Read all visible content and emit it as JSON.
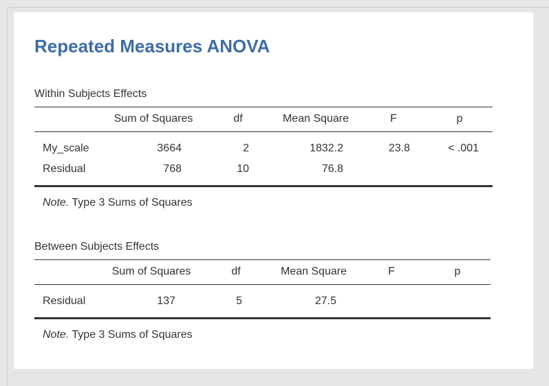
{
  "title": "Repeated Measures ANOVA",
  "within": {
    "caption": "Within Subjects Effects",
    "headers": [
      "Sum of Squares",
      "df",
      "Mean Square",
      "F",
      "p"
    ],
    "rows": [
      {
        "label": "My_scale",
        "ss": "3664",
        "df": "2",
        "ms": "1832.2",
        "f": "23.8",
        "p": "< .001"
      },
      {
        "label": "Residual",
        "ss": "768",
        "df": "10",
        "ms": "76.8",
        "f": "",
        "p": ""
      }
    ],
    "note_label": "Note.",
    "note_text": "Type 3 Sums of Squares"
  },
  "between": {
    "caption": "Between Subjects Effects",
    "headers": [
      "Sum of Squares",
      "df",
      "Mean Square",
      "F",
      "p"
    ],
    "rows": [
      {
        "label": "Residual",
        "ss": "137",
        "df": "5",
        "ms": "27.5",
        "f": "",
        "p": ""
      }
    ],
    "note_label": "Note.",
    "note_text": "Type 3 Sums of Squares"
  }
}
